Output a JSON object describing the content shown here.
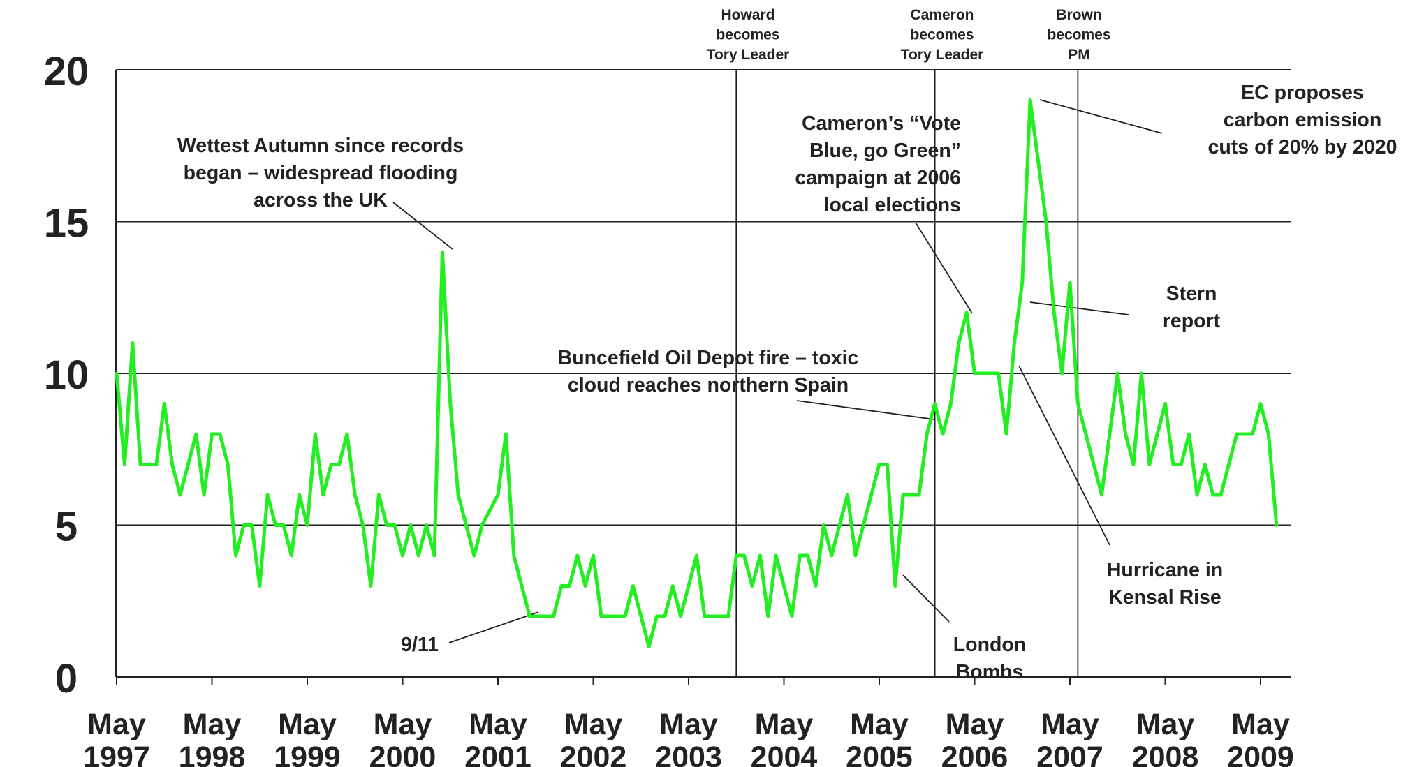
{
  "chart_data": {
    "type": "line",
    "y_ticks": [
      "0",
      "5",
      "10",
      "15",
      "20"
    ],
    "ylim": [
      0,
      20
    ],
    "grid": "horizontal",
    "x_ticks": [
      {
        "line1": "May",
        "line2": "1997"
      },
      {
        "line1": "May",
        "line2": "1998"
      },
      {
        "line1": "May",
        "line2": "1999"
      },
      {
        "line1": "May",
        "line2": "2000"
      },
      {
        "line1": "May",
        "line2": "2001"
      },
      {
        "line1": "May",
        "line2": "2002"
      },
      {
        "line1": "May",
        "line2": "2003"
      },
      {
        "line1": "May",
        "line2": "2004"
      },
      {
        "line1": "May",
        "line2": "2005"
      },
      {
        "line1": "May",
        "line2": "2006"
      },
      {
        "line1": "May",
        "line2": "2007"
      },
      {
        "line1": "May",
        "line2": "2008"
      },
      {
        "line1": "May",
        "line2": "2009"
      }
    ],
    "xlim": [
      "1997-05",
      "2009-10"
    ],
    "series": [
      {
        "color": "#22ee22",
        "points": [
          [
            "1997-05",
            10
          ],
          [
            "1997-06",
            7
          ],
          [
            "1997-07",
            11
          ],
          [
            "1997-08",
            7
          ],
          [
            "1997-09",
            7
          ],
          [
            "1997-10",
            7
          ],
          [
            "1997-11",
            9
          ],
          [
            "1997-12",
            7
          ],
          [
            "1998-01",
            6
          ],
          [
            "1998-02",
            7
          ],
          [
            "1998-03",
            8
          ],
          [
            "1998-04",
            6
          ],
          [
            "1998-05",
            8
          ],
          [
            "1998-06",
            8
          ],
          [
            "1998-07",
            7
          ],
          [
            "1998-08",
            4
          ],
          [
            "1998-09",
            5
          ],
          [
            "1998-10",
            5
          ],
          [
            "1998-11",
            3
          ],
          [
            "1998-12",
            6
          ],
          [
            "1999-01",
            5
          ],
          [
            "1999-02",
            5
          ],
          [
            "1999-03",
            4
          ],
          [
            "1999-04",
            6
          ],
          [
            "1999-05",
            5
          ],
          [
            "1999-06",
            8
          ],
          [
            "1999-07",
            6
          ],
          [
            "1999-08",
            7
          ],
          [
            "1999-09",
            7
          ],
          [
            "1999-10",
            8
          ],
          [
            "1999-11",
            6
          ],
          [
            "1999-12",
            5
          ],
          [
            "2000-01",
            3
          ],
          [
            "2000-02",
            6
          ],
          [
            "2000-03",
            5
          ],
          [
            "2000-04",
            5
          ],
          [
            "2000-05",
            4
          ],
          [
            "2000-06",
            5
          ],
          [
            "2000-07",
            4
          ],
          [
            "2000-08",
            5
          ],
          [
            "2000-09",
            4
          ],
          [
            "2000-10",
            14
          ],
          [
            "2000-11",
            9
          ],
          [
            "2000-12",
            6
          ],
          [
            "2001-01",
            5
          ],
          [
            "2001-02",
            4
          ],
          [
            "2001-03",
            5
          ],
          [
            "2001-05",
            6
          ],
          [
            "2001-06",
            8
          ],
          [
            "2001-07",
            4
          ],
          [
            "2001-08",
            3
          ],
          [
            "2001-09",
            2
          ],
          [
            "2001-10",
            2
          ],
          [
            "2001-11",
            2
          ],
          [
            "2001-12",
            2
          ],
          [
            "2002-01",
            3
          ],
          [
            "2002-02",
            3
          ],
          [
            "2002-03",
            4
          ],
          [
            "2002-04",
            3
          ],
          [
            "2002-05",
            4
          ],
          [
            "2002-06",
            2
          ],
          [
            "2002-07",
            2
          ],
          [
            "2002-08",
            2
          ],
          [
            "2002-09",
            2
          ],
          [
            "2002-10",
            3
          ],
          [
            "2002-11",
            2
          ],
          [
            "2002-12",
            1
          ],
          [
            "2003-01",
            2
          ],
          [
            "2003-02",
            2
          ],
          [
            "2003-03",
            3
          ],
          [
            "2003-04",
            2
          ],
          [
            "2003-05",
            3
          ],
          [
            "2003-06",
            4
          ],
          [
            "2003-07",
            2
          ],
          [
            "2003-08",
            2
          ],
          [
            "2003-09",
            2
          ],
          [
            "2003-10",
            2
          ],
          [
            "2003-11",
            4
          ],
          [
            "2003-12",
            4
          ],
          [
            "2004-01",
            3
          ],
          [
            "2004-02",
            4
          ],
          [
            "2004-03",
            2
          ],
          [
            "2004-04",
            4
          ],
          [
            "2004-05",
            3
          ],
          [
            "2004-06",
            2
          ],
          [
            "2004-07",
            4
          ],
          [
            "2004-08",
            4
          ],
          [
            "2004-09",
            3
          ],
          [
            "2004-10",
            5
          ],
          [
            "2004-11",
            4
          ],
          [
            "2004-12",
            5
          ],
          [
            "2005-01",
            6
          ],
          [
            "2005-02",
            4
          ],
          [
            "2005-03",
            5
          ],
          [
            "2005-04",
            6
          ],
          [
            "2005-05",
            7
          ],
          [
            "2005-06",
            7
          ],
          [
            "2005-07",
            3
          ],
          [
            "2005-08",
            6
          ],
          [
            "2005-09",
            6
          ],
          [
            "2005-10",
            6
          ],
          [
            "2005-11",
            8
          ],
          [
            "2005-12",
            9
          ],
          [
            "2006-01",
            8
          ],
          [
            "2006-02",
            9
          ],
          [
            "2006-03",
            11
          ],
          [
            "2006-04",
            12
          ],
          [
            "2006-05",
            10
          ],
          [
            "2006-06",
            10
          ],
          [
            "2006-07",
            10
          ],
          [
            "2006-08",
            10
          ],
          [
            "2006-09",
            8
          ],
          [
            "2006-10",
            11
          ],
          [
            "2006-11",
            13
          ],
          [
            "2006-12",
            19
          ],
          [
            "2007-01",
            17
          ],
          [
            "2007-02",
            15
          ],
          [
            "2007-03",
            12
          ],
          [
            "2007-04",
            10
          ],
          [
            "2007-05",
            13
          ],
          [
            "2007-06",
            9
          ],
          [
            "2007-07",
            8
          ],
          [
            "2007-08",
            7
          ],
          [
            "2007-09",
            6
          ],
          [
            "2007-10",
            8
          ],
          [
            "2007-11",
            10
          ],
          [
            "2007-12",
            8
          ],
          [
            "2008-01",
            7
          ],
          [
            "2008-02",
            10
          ],
          [
            "2008-03",
            7
          ],
          [
            "2008-04",
            8
          ],
          [
            "2008-05",
            9
          ],
          [
            "2008-06",
            7
          ],
          [
            "2008-07",
            7
          ],
          [
            "2008-08",
            8
          ],
          [
            "2008-09",
            6
          ],
          [
            "2008-10",
            7
          ],
          [
            "2008-11",
            6
          ],
          [
            "2008-12",
            6
          ],
          [
            "2009-01",
            7
          ],
          [
            "2009-02",
            8
          ],
          [
            "2009-03",
            8
          ],
          [
            "2009-04",
            8
          ],
          [
            "2009-05",
            9
          ],
          [
            "2009-06",
            8
          ],
          [
            "2009-07",
            5
          ]
        ]
      }
    ],
    "event_lines": [
      {
        "date": "2003-11",
        "label": [
          "Howard",
          "becomes",
          "Tory Leader"
        ]
      },
      {
        "date": "2005-12",
        "label": [
          "Cameron",
          "becomes",
          "Tory Leader"
        ]
      },
      {
        "date": "2007-06",
        "label": [
          "Brown",
          "becomes",
          "PM"
        ]
      }
    ],
    "annotations": [
      {
        "id": "autumn-flood",
        "lines": [
          "Wettest Autumn since records",
          "began – widespread flooding",
          "across the UK"
        ]
      },
      {
        "id": "nine-eleven",
        "lines": [
          "9/11"
        ]
      },
      {
        "id": "buncefield",
        "lines": [
          "Buncefield Oil Depot fire – toxic",
          "cloud reaches northern Spain"
        ]
      },
      {
        "id": "vote-blue",
        "lines": [
          "Cameron’s “Vote",
          "Blue, go Green”",
          "campaign at 2006",
          "local elections"
        ]
      },
      {
        "id": "ec-carbon",
        "lines": [
          "EC proposes",
          "carbon emission",
          "cuts of 20% by 2020"
        ]
      },
      {
        "id": "stern",
        "lines": [
          "Stern",
          "report"
        ]
      },
      {
        "id": "hurricane",
        "lines": [
          "Hurricane in",
          "Kensal Rise"
        ]
      },
      {
        "id": "london-bombs",
        "lines": [
          "London",
          "Bombs"
        ]
      }
    ]
  }
}
